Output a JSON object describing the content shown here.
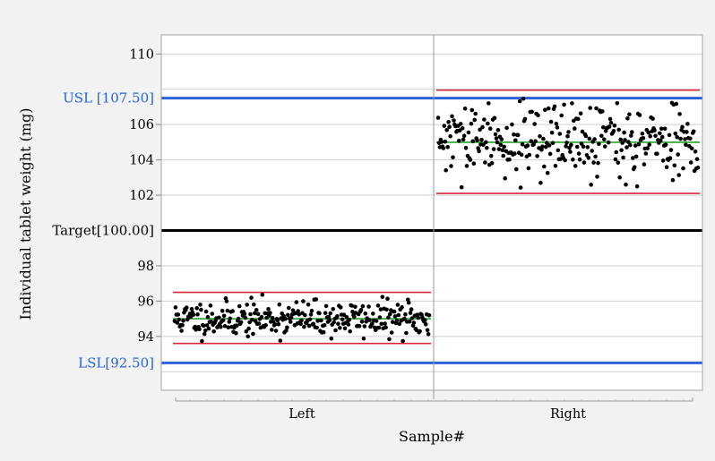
{
  "chart_data": {
    "type": "scatter",
    "title": "",
    "xlabel": "Sample#",
    "ylabel": "Individual tablet weight (mg)",
    "ylim": [
      91.3,
      111.3
    ],
    "yticks": [
      94,
      96,
      98,
      102,
      104,
      106,
      110
    ],
    "grid": true,
    "panels": [
      {
        "label": "Left",
        "mean": 95.0,
        "ucl": 96.5,
        "lcl": 93.6,
        "y_min": 93.6,
        "y_max": 96.4,
        "n": 300,
        "seed": 11
      },
      {
        "label": "Right",
        "mean": 105.0,
        "ucl": 107.95,
        "lcl": 102.1,
        "y_min": 102.3,
        "y_max": 107.6,
        "n": 300,
        "seed": 29
      }
    ],
    "reference_lines": [
      {
        "name": "usl",
        "label": "USL [107.50]",
        "value": 107.5,
        "color": "#2962d9"
      },
      {
        "name": "target",
        "label": "Target[100.00]",
        "value": 100.0,
        "color": "#000000"
      },
      {
        "name": "lsl",
        "label": "LSL[92.50]",
        "value": 92.5,
        "color": "#2962d9"
      }
    ],
    "colors": {
      "control_limit": "#d9263a",
      "center_line": "#22a422",
      "point": "#000000",
      "grid": "#cfcfcf"
    }
  }
}
